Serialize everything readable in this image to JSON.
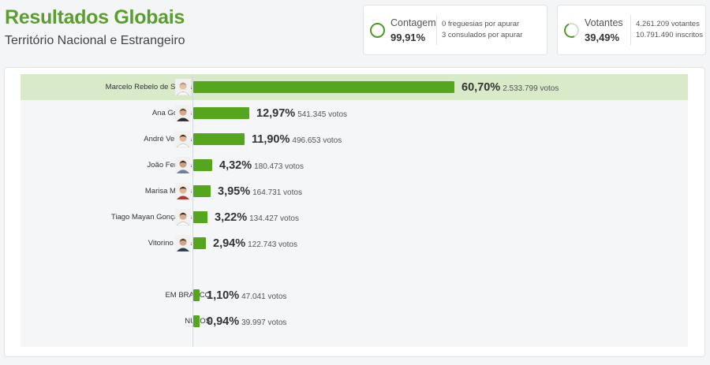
{
  "header": {
    "title": "Resultados Globais",
    "subtitle": "Território Nacional e Estrangeiro"
  },
  "stats": {
    "contagem": {
      "label": "Contagem",
      "value": "99,91%",
      "fraction": 0.9991,
      "line1": "0 freguesias por apurar",
      "line2": "3 consulados por apurar"
    },
    "votantes": {
      "label": "Votantes",
      "value": "39,49%",
      "fraction": 0.3949,
      "line1": "4.261.209 votantes",
      "line2": "10.791.490 inscritos"
    }
  },
  "colors": {
    "accent": "#5a9e2d",
    "bar": "#56a51f",
    "highlight": "#d9eac9"
  },
  "chart_data": {
    "type": "bar",
    "orientation": "horizontal",
    "title": "",
    "categories": [
      "Marcelo Rebelo de Sousa",
      "Ana Gomes",
      "André Ventura",
      "João Ferreira",
      "Marisa Matias",
      "Tiago Mayan Gonçalves",
      "Vitorino Silva",
      "EM BRANCO",
      "NULOS"
    ],
    "values": [
      60.7,
      12.97,
      11.9,
      4.32,
      3.95,
      3.22,
      2.94,
      1.1,
      0.94
    ],
    "percent_labels": [
      "60,70%",
      "12,97%",
      "11,90%",
      "4,32%",
      "3,95%",
      "3,22%",
      "2,94%",
      "1,10%",
      "0,94%"
    ],
    "vote_labels": [
      "2.533.799 votos",
      "541.345 votos",
      "496.653 votos",
      "180.473 votos",
      "164.731 votos",
      "134.427 votos",
      "122.743 votos",
      "47.041 votos",
      "39.997 votos"
    ],
    "has_avatar": [
      true,
      true,
      true,
      true,
      true,
      true,
      true,
      false,
      false
    ],
    "highlighted": [
      true,
      false,
      false,
      false,
      false,
      false,
      false,
      false,
      false
    ],
    "gap_before": [
      false,
      false,
      false,
      false,
      false,
      false,
      false,
      true,
      false
    ],
    "grid": false,
    "legend": "none"
  }
}
